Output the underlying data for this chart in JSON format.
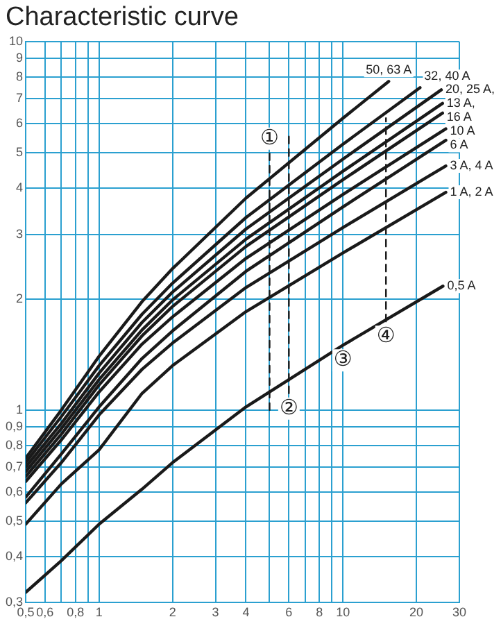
{
  "chart_data": {
    "type": "line",
    "title": "Characteristic curve",
    "legend": false,
    "marker": "none",
    "grid": true,
    "log": "xy",
    "xlim": [
      0.5,
      30
    ],
    "ylim": [
      0.3,
      10
    ],
    "xticks": [
      {
        "value": 0.5,
        "label": "0,5"
      },
      {
        "value": 0.6,
        "label": "0,6"
      },
      {
        "value": 0.7,
        "label": null
      },
      {
        "value": 0.8,
        "label": "0,8"
      },
      {
        "value": 0.9,
        "label": null
      },
      1,
      2,
      3,
      4,
      {
        "value": 5,
        "label": null
      },
      6,
      {
        "value": 7,
        "label": null
      },
      8,
      {
        "value": 9,
        "label": null
      },
      10,
      20,
      30
    ],
    "yticks": [
      {
        "value": 0.3,
        "label": "0,3"
      },
      {
        "value": 0.4,
        "label": "0,4"
      },
      {
        "value": 0.5,
        "label": "0,5"
      },
      {
        "value": 0.6,
        "label": "0,6"
      },
      {
        "value": 0.7,
        "label": "0,7"
      },
      {
        "value": 0.8,
        "label": "0,8"
      },
      {
        "value": 0.9,
        "label": "0,9"
      },
      1,
      2,
      3,
      4,
      5,
      6,
      7,
      8,
      9,
      10
    ],
    "series": [
      {
        "name": "50, 63 A",
        "color": "#1a1a1a",
        "x": [
          0.5,
          0.7,
          1,
          1.5,
          2,
          4,
          10,
          15.4
        ],
        "values": [
          0.74,
          1.0,
          1.4,
          1.97,
          2.42,
          3.76,
          6.2,
          7.8
        ]
      },
      {
        "name": "32, 40 A",
        "color": "#1a1a1a",
        "x": [
          0.5,
          0.7,
          1,
          1.5,
          2,
          4,
          10,
          20.7
        ],
        "values": [
          0.72,
          0.96,
          1.32,
          1.82,
          2.21,
          3.33,
          5.27,
          7.5
        ]
      },
      {
        "name": "20, 25 A,",
        "color": "#1a1a1a",
        "x": [
          0.5,
          0.7,
          1,
          1.5,
          2,
          4,
          10,
          25.3
        ],
        "values": [
          0.7,
          0.92,
          1.26,
          1.73,
          2.09,
          3.1,
          4.8,
          7.4
        ]
      },
      {
        "name": "13 A,",
        "color": "#1a1a1a",
        "x": [
          0.5,
          0.7,
          1,
          1.5,
          2,
          4,
          10,
          25.6
        ],
        "values": [
          0.68,
          0.89,
          1.21,
          1.65,
          1.99,
          2.91,
          4.45,
          6.8
        ]
      },
      {
        "name": "16 A",
        "color": "#1a1a1a",
        "x": [
          0.5,
          0.7,
          1,
          1.5,
          2,
          4,
          10,
          25.6
        ],
        "values": [
          0.66,
          0.86,
          1.17,
          1.59,
          1.91,
          2.78,
          4.22,
          6.4
        ]
      },
      {
        "name": "10 A",
        "color": "#1a1a1a",
        "x": [
          0.5,
          0.7,
          1,
          1.5,
          2,
          4,
          10,
          26.4
        ],
        "values": [
          0.64,
          0.83,
          1.12,
          1.51,
          1.79,
          2.58,
          3.85,
          5.8
        ]
      },
      {
        "name": "6 A",
        "color": "#1a1a1a",
        "x": [
          0.5,
          0.7,
          1,
          1.5,
          2,
          4,
          10,
          26.4
        ],
        "values": [
          0.58,
          0.76,
          1.02,
          1.38,
          1.64,
          2.38,
          3.56,
          5.4
        ]
      },
      {
        "name": "3 A, 4 A",
        "color": "#1a1a1a",
        "x": [
          0.5,
          0.7,
          1,
          1.5,
          2,
          4,
          10,
          26.4
        ],
        "values": [
          0.56,
          0.72,
          0.97,
          1.29,
          1.52,
          2.15,
          3.13,
          4.6
        ]
      },
      {
        "name": "1 A, 2 A",
        "color": "#1a1a1a",
        "x": [
          0.5,
          0.7,
          1,
          1.5,
          2,
          4,
          10,
          26.4
        ],
        "values": [
          0.49,
          0.63,
          0.78,
          1.11,
          1.32,
          1.85,
          2.67,
          3.9
        ]
      },
      {
        "name": "0,5 A",
        "color": "#1a1a1a",
        "x": [
          0.5,
          0.7,
          1,
          1.5,
          2,
          4,
          10,
          25.7
        ],
        "values": [
          0.32,
          0.39,
          0.49,
          0.61,
          0.72,
          1.02,
          1.5,
          2.17
        ]
      },
      {
        "color": "#1a1a1a",
        "line_style": "dashed",
        "x": [
          5,
          5
        ],
        "values": [
          1.0,
          5.0
        ]
      },
      {
        "color": "#1a1a1a",
        "line_style": "dashed",
        "x": [
          6,
          6
        ],
        "values": [
          1.11,
          5.6
        ]
      },
      {
        "color": "#1a1a1a",
        "line_style": "dashed",
        "x": [
          15,
          15
        ],
        "values": [
          1.74,
          6.2
        ]
      }
    ],
    "annotations": [
      {
        "text": "①",
        "x": 5,
        "y": 5.0
      },
      {
        "text": "②",
        "x": 6,
        "y": 1.11
      },
      {
        "text": "③",
        "x": 10,
        "y": 1.5
      },
      {
        "text": "④",
        "x": 15,
        "y": 1.74
      }
    ]
  }
}
